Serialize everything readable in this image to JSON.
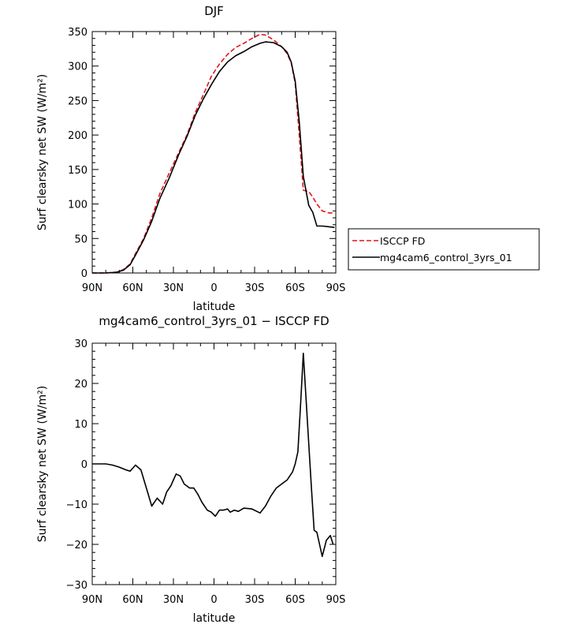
{
  "chart_data": [
    {
      "type": "line",
      "title": "DJF",
      "xlabel": "latitude",
      "ylabel": "Surf clearsky net SW (W/m²)",
      "xlim": [
        -90,
        90
      ],
      "ylim": [
        0,
        350
      ],
      "x_ticks": [
        -90,
        -60,
        -30,
        0,
        30,
        60,
        90
      ],
      "x_tick_labels": [
        "90N",
        "60N",
        "30N",
        "0",
        "30S",
        "60S",
        "90S"
      ],
      "y_ticks": [
        0,
        50,
        100,
        150,
        200,
        250,
        300,
        350
      ],
      "y_tick_labels": [
        "0",
        "50",
        "100",
        "150",
        "200",
        "250",
        "300",
        "350"
      ],
      "legend_position": "outside-right",
      "series": [
        {
          "name": "ISCCP FD",
          "color": "#e0141e",
          "dash": "dashed",
          "x": [
            -90,
            -80,
            -72,
            -67,
            -62,
            -58,
            -52,
            -46,
            -40,
            -33,
            -26,
            -20,
            -14,
            -8,
            -2,
            4,
            10,
            16,
            22,
            28,
            34,
            38,
            44,
            50,
            54,
            57,
            60,
            63,
            66,
            70,
            73,
            76,
            80,
            85,
            89
          ],
          "y": [
            0,
            0,
            1,
            5,
            13,
            28,
            50,
            80,
            115,
            145,
            175,
            200,
            232,
            258,
            285,
            303,
            317,
            327,
            333,
            340,
            346,
            345,
            338,
            328,
            318,
            305,
            275,
            200,
            120,
            118,
            110,
            100,
            90,
            87,
            87
          ]
        },
        {
          "name": "mg4cam6_control_3yrs_01",
          "color": "#000000",
          "dash": "solid",
          "x": [
            -90,
            -80,
            -72,
            -67,
            -62,
            -58,
            -52,
            -46,
            -40,
            -33,
            -26,
            -20,
            -14,
            -8,
            -2,
            4,
            10,
            16,
            22,
            28,
            34,
            38,
            44,
            50,
            54,
            57,
            60,
            63,
            66,
            70,
            73,
            76,
            80,
            85,
            89
          ],
          "y": [
            0,
            0,
            1,
            4,
            12,
            26,
            48,
            75,
            108,
            138,
            172,
            198,
            228,
            252,
            273,
            292,
            306,
            315,
            321,
            328,
            333,
            335,
            334,
            328,
            320,
            306,
            278,
            220,
            140,
            98,
            88,
            68,
            68,
            67,
            66
          ]
        }
      ]
    },
    {
      "type": "line",
      "title": "mg4cam6_control_3yrs_01 − ISCCP FD",
      "xlabel": "latitude",
      "ylabel": "Surf clearsky net SW (W/m²)",
      "xlim": [
        -90,
        90
      ],
      "ylim": [
        -30,
        30
      ],
      "x_ticks": [
        -90,
        -60,
        -30,
        0,
        30,
        60,
        90
      ],
      "x_tick_labels": [
        "90N",
        "60N",
        "30N",
        "0",
        "30S",
        "60S",
        "90S"
      ],
      "y_ticks": [
        -30,
        -20,
        -10,
        0,
        10,
        20,
        30
      ],
      "y_tick_labels": [
        "−30",
        "−20",
        "−10",
        "0",
        "10",
        "20",
        "30"
      ],
      "series": [
        {
          "color": "#000000",
          "dash": "solid",
          "x": [
            -90,
            -80,
            -75,
            -70,
            -65,
            -62,
            -58,
            -54,
            -50,
            -46,
            -42,
            -38,
            -35,
            -32,
            -28,
            -25,
            -22,
            -18,
            -15,
            -12,
            -9,
            -5,
            -2,
            1,
            4,
            7,
            10,
            12,
            15,
            18,
            22,
            28,
            34,
            38,
            42,
            46,
            50,
            54,
            58,
            60,
            62,
            64,
            66,
            70,
            72,
            74,
            76,
            78,
            80,
            83,
            86,
            88
          ],
          "y": [
            0,
            0,
            -0.3,
            -0.8,
            -1.5,
            -1.8,
            -0.3,
            -1.5,
            -6,
            -10.5,
            -8.5,
            -10,
            -7,
            -5.5,
            -2.5,
            -3,
            -5,
            -6,
            -6,
            -7.5,
            -9.5,
            -11.5,
            -12,
            -13,
            -11.5,
            -11.5,
            -11.2,
            -12,
            -11.5,
            -11.8,
            -11,
            -11.2,
            -12.2,
            -10.5,
            -8,
            -6,
            -5,
            -4,
            -2,
            0,
            3,
            15,
            27.5,
            5,
            -6,
            -16.5,
            -17,
            -20,
            -23,
            -19,
            -17.8,
            -20
          ]
        }
      ]
    }
  ]
}
